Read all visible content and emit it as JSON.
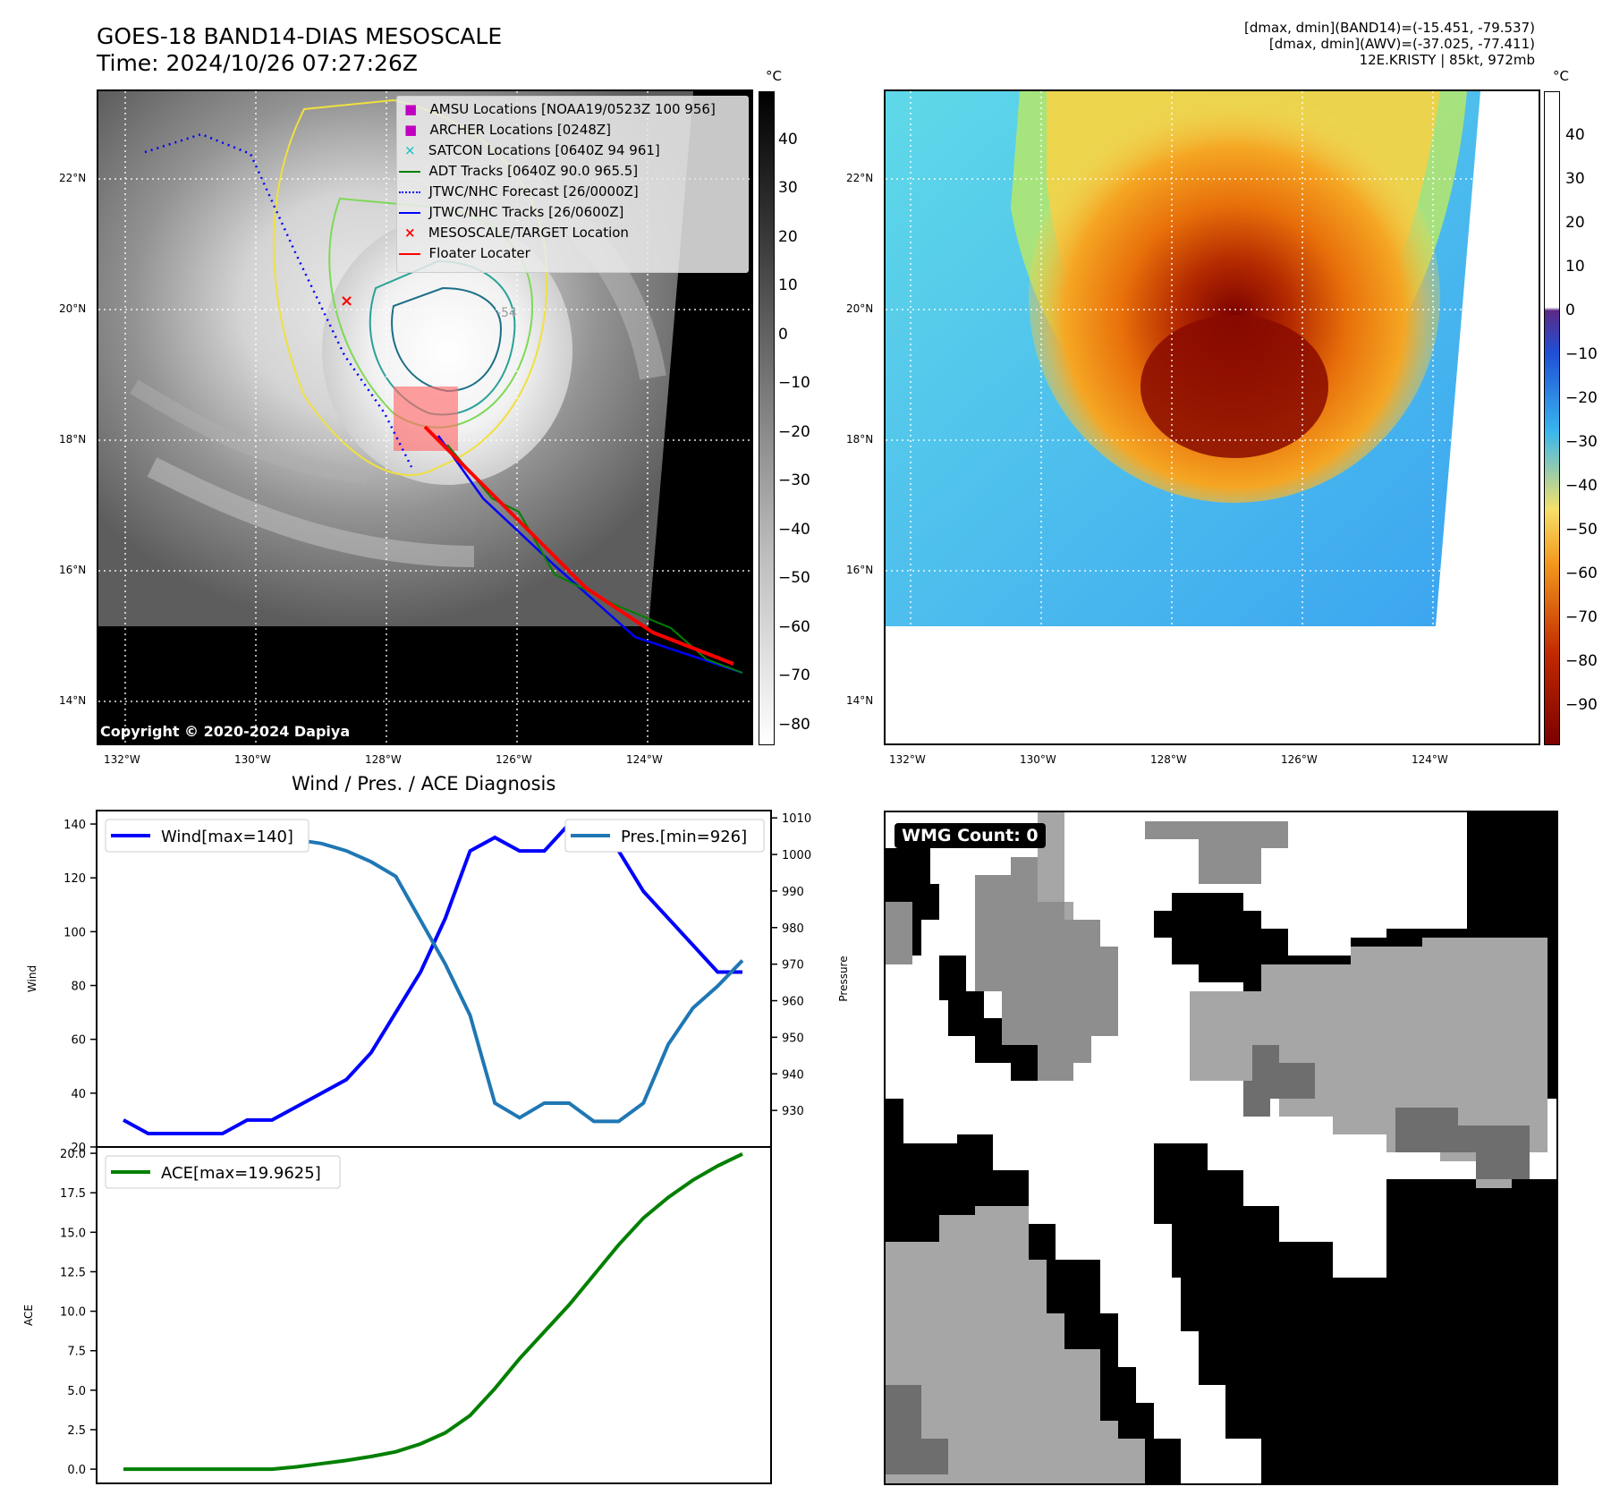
{
  "header": {
    "title_line1": "GOES-18 BAND14-DIAS MESOSCALE",
    "title_line2": "Time: 2024/10/26 07:27:26Z",
    "info_line1": "[dmax, dmin](BAND14)=(-15.451, -79.537)",
    "info_line2": "[dmax, dmin](AWV)=(-37.025, -77.411)",
    "info_line3": "12E.KRISTY | 85kt, 972mb"
  },
  "map_axes": {
    "lon_labels": [
      "132°W",
      "130°W",
      "128°W",
      "126°W",
      "124°W"
    ],
    "lat_labels": [
      "22°N",
      "20°N",
      "18°N",
      "16°N",
      "14°N"
    ],
    "contour_label": "-54"
  },
  "ir_panel": {
    "copyright": "Copyright © 2020-2024 Dapiya",
    "colorbar_unit": "°C",
    "colorbar_ticks": [
      "40",
      "30",
      "20",
      "10",
      "0",
      "−10",
      "−20",
      "−30",
      "−40",
      "−50",
      "−60",
      "−70",
      "−80"
    ],
    "legend": [
      {
        "label": "AMSU Locations [NOAA19/0523Z 100 956]",
        "marker": "square",
        "color": "#c000c0"
      },
      {
        "label": "ARCHER Locations [0248Z]",
        "marker": "square",
        "color": "#c000c0"
      },
      {
        "label": "SATCON Locations [0640Z 94 961]",
        "marker": "x",
        "color": "#00c0c0"
      },
      {
        "label": "ADT Tracks [0640Z 90.0 965.5]",
        "marker": "line",
        "color": "#008000"
      },
      {
        "label": "JTWC/NHC Forecast [26/0000Z]",
        "marker": "dotted",
        "color": "#0000ff"
      },
      {
        "label": "JTWC/NHC Tracks [26/0600Z]",
        "marker": "line-dot",
        "color": "#0000ff"
      },
      {
        "label": "MESOSCALE/TARGET Location",
        "marker": "x",
        "color": "#ff0000"
      },
      {
        "label": "Floater Locater",
        "marker": "line",
        "color": "#ff0000"
      }
    ]
  },
  "wv_panel": {
    "colorbar_unit": "°C",
    "colorbar_ticks": [
      "40",
      "30",
      "20",
      "10",
      "0",
      "−10",
      "−20",
      "−30",
      "−40",
      "−50",
      "−60",
      "−70",
      "−80",
      "−90"
    ]
  },
  "diagnosis": {
    "title": "Wind / Pres. / ACE Diagnosis",
    "wind_ylabel": "Wind",
    "pres_ylabel": "Pressure",
    "ace_ylabel": "ACE",
    "wind_legend": "Wind[max=140]",
    "pres_legend": "Pres.[min=926]",
    "ace_legend": "ACE[max=19.9625]"
  },
  "wmg": {
    "label": "WMG Count: 0"
  },
  "chart_data": [
    {
      "type": "line",
      "title": "Wind / Pres. / ACE Diagnosis",
      "ylabel": "Wind",
      "ylim": [
        20,
        145
      ],
      "y_ticks": [
        "20",
        "40",
        "60",
        "80",
        "100",
        "120",
        "140"
      ],
      "x": [
        0,
        1,
        2,
        3,
        4,
        5,
        6,
        7,
        8,
        9,
        10,
        11,
        12,
        13,
        14,
        15,
        16,
        17,
        18,
        19,
        20,
        21,
        22,
        23,
        24,
        25
      ],
      "series": [
        {
          "name": "Wind[max=140]",
          "color": "#0000ff",
          "values": [
            30,
            25,
            25,
            25,
            25,
            30,
            30,
            35,
            40,
            45,
            55,
            70,
            85,
            105,
            130,
            135,
            130,
            130,
            140,
            140,
            130,
            115,
            105,
            95,
            85,
            85
          ]
        }
      ]
    },
    {
      "type": "line",
      "ylabel": "Pressure",
      "ylim": [
        920,
        1012
      ],
      "y_ticks": [
        "930",
        "940",
        "950",
        "960",
        "970",
        "980",
        "990",
        "1000",
        "1010"
      ],
      "x": [
        0,
        1,
        2,
        3,
        4,
        5,
        6,
        7,
        8,
        9,
        10,
        11,
        12,
        13,
        14,
        15,
        16,
        17,
        18,
        19,
        20,
        21,
        22,
        23,
        24,
        25
      ],
      "series": [
        {
          "name": "Pres.[min=926]",
          "color": "#1f77b4",
          "values": [
            1006,
            1006,
            1006,
            1007,
            1007,
            1007,
            1005,
            1004,
            1003,
            1001,
            998,
            994,
            982,
            970,
            956,
            932,
            928,
            932,
            932,
            927,
            927,
            932,
            948,
            958,
            964,
            971
          ]
        }
      ]
    },
    {
      "type": "line",
      "ylabel": "ACE",
      "ylim": [
        -0.9,
        20.4
      ],
      "y_ticks": [
        "0.0",
        "2.5",
        "5.0",
        "7.5",
        "10.0",
        "12.5",
        "15.0",
        "17.5",
        "20.0"
      ],
      "x": [
        0,
        1,
        2,
        3,
        4,
        5,
        6,
        7,
        8,
        9,
        10,
        11,
        12,
        13,
        14,
        15,
        16,
        17,
        18,
        19,
        20,
        21,
        22,
        23,
        24,
        25
      ],
      "series": [
        {
          "name": "ACE[max=19.9625]",
          "color": "#008000",
          "values": [
            0,
            0,
            0,
            0,
            0,
            0,
            0,
            0.15,
            0.35,
            0.55,
            0.8,
            1.1,
            1.6,
            2.3,
            3.4,
            5.1,
            7,
            8.7,
            10.4,
            12.3,
            14.2,
            15.9,
            17.2,
            18.3,
            19.2,
            19.96
          ]
        }
      ]
    }
  ]
}
